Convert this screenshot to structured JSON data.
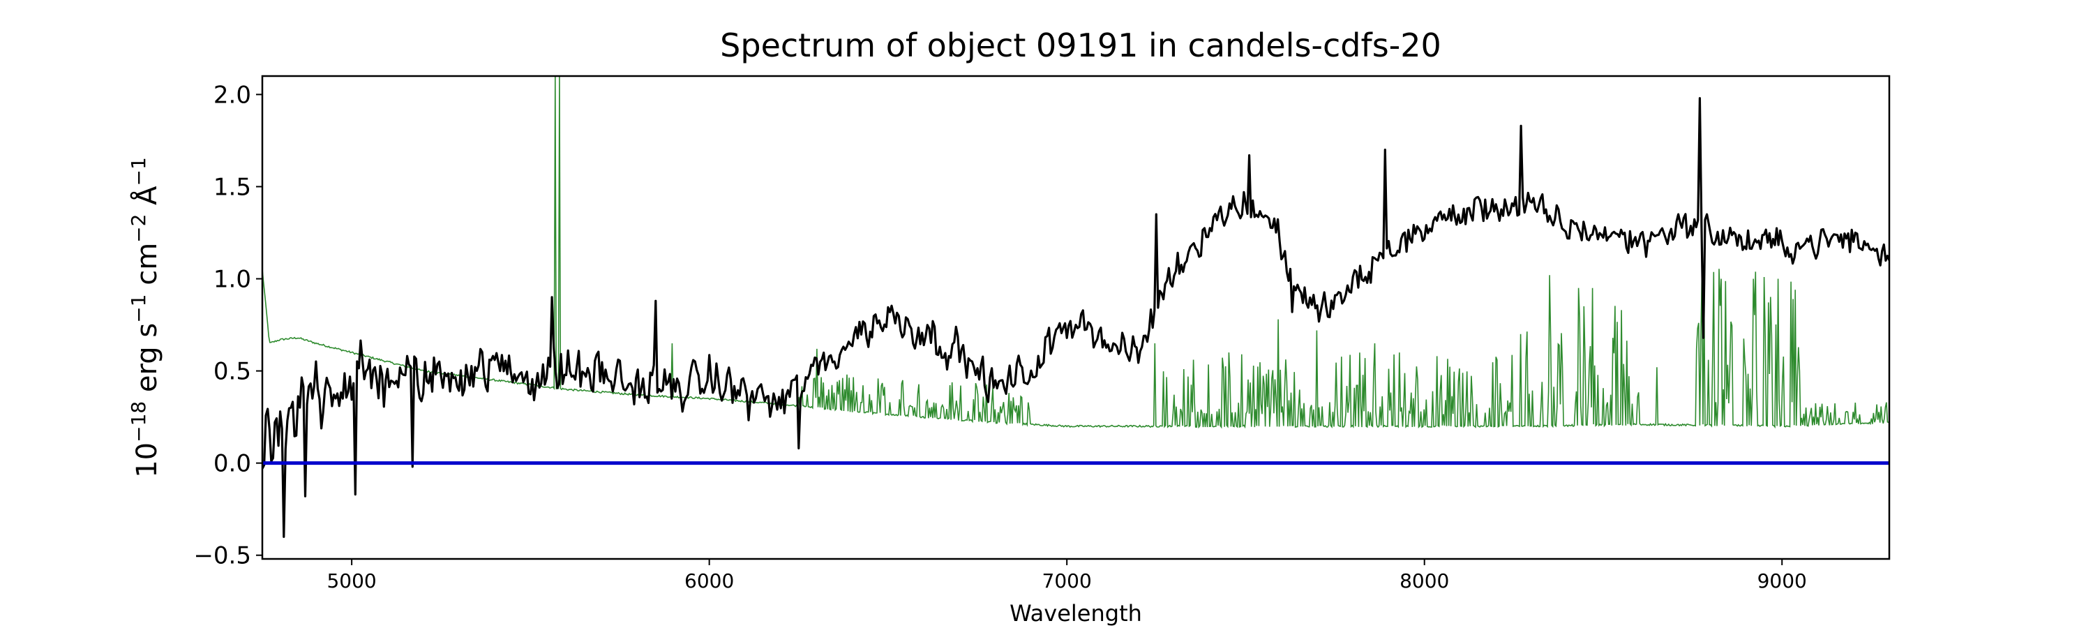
{
  "chart_data": {
    "type": "line",
    "title": "Spectrum of object 09191 in candels-cdfs-20",
    "xlabel": "Wavelength",
    "ylabel": {
      "prefix": "10",
      "prefix_sup": "−18",
      "part1": " erg s",
      "part1_sup": "−1",
      "part2": " cm",
      "part2_sup": "−2",
      "part3": " Å",
      "part3_sup": "−1"
    },
    "xlim": [
      4750,
      9300
    ],
    "ylim": [
      -0.52,
      2.1
    ],
    "xticks": [
      5000,
      6000,
      7000,
      8000,
      9000
    ],
    "yticks": [
      2.0,
      1.5,
      1.0,
      0.5,
      0.0,
      -0.5
    ],
    "xtick_labels": [
      "5000",
      "6000",
      "7000",
      "8000",
      "9000"
    ],
    "ytick_labels": [
      "2.0",
      "1.5",
      "1.0",
      "0.5",
      "0.0",
      "−0.5"
    ],
    "grid": false,
    "series": [
      {
        "role": "flux",
        "color": "#000000",
        "anchors": [
          [
            4750,
            0.15
          ],
          [
            4800,
            0.05
          ],
          [
            4900,
            0.45
          ],
          [
            5000,
            0.45
          ],
          [
            5100,
            0.48
          ],
          [
            5200,
            0.45
          ],
          [
            5300,
            0.5
          ],
          [
            5400,
            0.52
          ],
          [
            5500,
            0.48
          ],
          [
            5600,
            0.5
          ],
          [
            5700,
            0.48
          ],
          [
            5800,
            0.42
          ],
          [
            5900,
            0.4
          ],
          [
            6000,
            0.45
          ],
          [
            6100,
            0.38
          ],
          [
            6200,
            0.32
          ],
          [
            6300,
            0.5
          ],
          [
            6400,
            0.68
          ],
          [
            6500,
            0.8
          ],
          [
            6600,
            0.72
          ],
          [
            6700,
            0.6
          ],
          [
            6800,
            0.4
          ],
          [
            6900,
            0.5
          ],
          [
            7000,
            0.75
          ],
          [
            7050,
            0.8
          ],
          [
            7100,
            0.65
          ],
          [
            7200,
            0.58
          ],
          [
            7250,
            0.85
          ],
          [
            7300,
            1.05
          ],
          [
            7400,
            1.3
          ],
          [
            7500,
            1.42
          ],
          [
            7580,
            1.3
          ],
          [
            7620,
            1.05
          ],
          [
            7700,
            0.8
          ],
          [
            7800,
            0.95
          ],
          [
            7900,
            1.15
          ],
          [
            8000,
            1.28
          ],
          [
            8100,
            1.35
          ],
          [
            8200,
            1.4
          ],
          [
            8300,
            1.38
          ],
          [
            8400,
            1.28
          ],
          [
            8500,
            1.25
          ],
          [
            8600,
            1.2
          ],
          [
            8700,
            1.28
          ],
          [
            8760,
            1.3
          ],
          [
            8800,
            1.25
          ],
          [
            8900,
            1.2
          ],
          [
            9000,
            1.18
          ],
          [
            9100,
            1.2
          ],
          [
            9200,
            1.22
          ],
          [
            9300,
            1.1
          ]
        ],
        "noise": [
          [
            4750,
            0.3
          ],
          [
            5000,
            0.25
          ],
          [
            5200,
            0.17
          ],
          [
            6000,
            0.14
          ],
          [
            7000,
            0.12
          ],
          [
            8000,
            0.11
          ],
          [
            9300,
            0.1
          ]
        ],
        "spikes": [
          [
            4810,
            -0.4
          ],
          [
            4870,
            -0.18
          ],
          [
            5010,
            -0.17
          ],
          [
            5170,
            -0.02
          ],
          [
            5560,
            0.9
          ],
          [
            5850,
            0.88
          ],
          [
            6250,
            0.08
          ],
          [
            7250,
            1.35
          ],
          [
            7510,
            1.67
          ],
          [
            7630,
            0.82
          ],
          [
            7890,
            1.7
          ],
          [
            8270,
            1.83
          ],
          [
            8770,
            1.98
          ],
          [
            8780,
            0.68
          ]
        ]
      },
      {
        "role": "model",
        "color": "#2e8b2e",
        "anchors": [
          [
            4750,
            1.05
          ],
          [
            4770,
            0.65
          ],
          [
            4800,
            0.67
          ],
          [
            4850,
            0.68
          ],
          [
            4900,
            0.65
          ],
          [
            5000,
            0.6
          ],
          [
            5200,
            0.5
          ],
          [
            5400,
            0.45
          ],
          [
            5600,
            0.4
          ],
          [
            5800,
            0.37
          ],
          [
            6000,
            0.35
          ],
          [
            6200,
            0.32
          ],
          [
            6400,
            0.28
          ],
          [
            6600,
            0.25
          ],
          [
            6800,
            0.22
          ],
          [
            7000,
            0.2
          ],
          [
            7300,
            0.2
          ],
          [
            7600,
            0.2
          ],
          [
            8000,
            0.2
          ],
          [
            8300,
            0.2
          ],
          [
            8600,
            0.21
          ],
          [
            9000,
            0.2
          ],
          [
            9300,
            0.22
          ]
        ],
        "spikes": [
          [
            5570,
            2.1
          ],
          [
            5580,
            2.1
          ],
          [
            5895,
            0.65
          ],
          [
            6300,
            0.62
          ],
          [
            6365,
            0.45
          ],
          [
            7245,
            0.65
          ],
          [
            7590,
            0.78
          ],
          [
            7700,
            0.72
          ],
          [
            7860,
            0.65
          ],
          [
            7930,
            0.6
          ],
          [
            8270,
            0.7
          ],
          [
            8350,
            1.02
          ],
          [
            8430,
            0.95
          ],
          [
            8470,
            0.95
          ],
          [
            8550,
            0.83
          ],
          [
            8650,
            0.52
          ],
          [
            8760,
            0.62
          ],
          [
            8830,
            1.0
          ],
          [
            8920,
            1.0
          ],
          [
            8990,
            1.0
          ]
        ],
        "emission_regions": [
          [
            6250,
            6900,
            0.05,
            0.16
          ],
          [
            7250,
            8250,
            0.07,
            0.35
          ],
          [
            8280,
            8600,
            0.1,
            0.55
          ],
          [
            8760,
            9050,
            0.12,
            0.75
          ],
          [
            9050,
            9300,
            0.02,
            0.1
          ]
        ]
      },
      {
        "role": "zero-line",
        "color": "#0000cc",
        "y": 0.0
      }
    ]
  }
}
